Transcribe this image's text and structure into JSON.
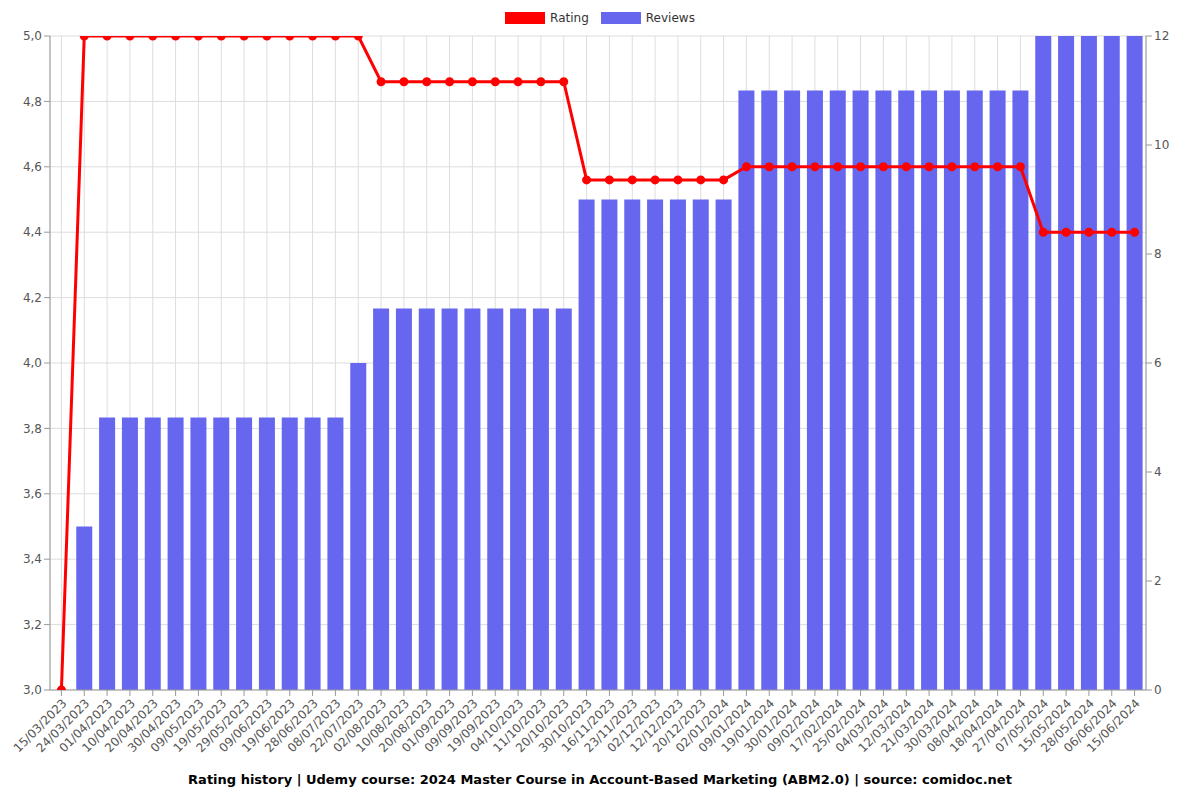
{
  "chart_data": {
    "type": "bar",
    "title": "Rating history | Udemy course: 2024 Master Course in Account-Based Marketing (ABM2.0) | source: comidoc.net",
    "categories": [
      "15/03/2023",
      "24/03/2023",
      "01/04/2023",
      "10/04/2023",
      "20/04/2023",
      "30/04/2023",
      "09/05/2023",
      "19/05/2023",
      "29/05/2023",
      "09/06/2023",
      "19/06/2023",
      "28/06/2023",
      "08/07/2023",
      "22/07/2023",
      "02/08/2023",
      "10/08/2023",
      "20/08/2023",
      "01/09/2023",
      "09/09/2023",
      "19/09/2023",
      "04/10/2023",
      "11/10/2023",
      "20/10/2023",
      "30/10/2023",
      "16/11/2023",
      "23/11/2023",
      "02/12/2023",
      "12/12/2023",
      "20/12/2023",
      "02/01/2024",
      "09/01/2024",
      "19/01/2024",
      "30/01/2024",
      "09/02/2024",
      "17/02/2024",
      "25/02/2024",
      "04/03/2024",
      "12/03/2024",
      "21/03/2024",
      "30/03/2024",
      "08/04/2024",
      "18/04/2024",
      "27/04/2024",
      "07/05/2024",
      "15/05/2024",
      "28/05/2024",
      "06/06/2024",
      "15/06/2024"
    ],
    "series": [
      {
        "name": "Rating",
        "type": "line",
        "color": "#ff0000",
        "marker": "circle",
        "values": [
          3.0,
          5.0,
          5.0,
          5.0,
          5.0,
          5.0,
          5.0,
          5.0,
          5.0,
          5.0,
          5.0,
          5.0,
          5.0,
          5.0,
          4.86,
          4.86,
          4.86,
          4.86,
          4.86,
          4.86,
          4.86,
          4.86,
          4.86,
          4.56,
          4.56,
          4.56,
          4.56,
          4.56,
          4.56,
          4.56,
          4.6,
          4.6,
          4.6,
          4.6,
          4.6,
          4.6,
          4.6,
          4.6,
          4.6,
          4.6,
          4.6,
          4.6,
          4.6,
          4.4,
          4.4,
          4.4,
          4.4,
          4.4
        ]
      },
      {
        "name": "Reviews",
        "type": "bar",
        "axis": "y2",
        "color": "#6666ee",
        "values": [
          0,
          3,
          5,
          5,
          5,
          5,
          5,
          5,
          5,
          5,
          5,
          5,
          5,
          6,
          7,
          7,
          7,
          7,
          7,
          7,
          7,
          7,
          7,
          9,
          9,
          9,
          9,
          9,
          9,
          9,
          11,
          11,
          11,
          11,
          11,
          11,
          11,
          11,
          11,
          11,
          11,
          11,
          11,
          12,
          12,
          12,
          12,
          12
        ]
      }
    ],
    "ylim": [
      3.0,
      5.0
    ],
    "yticks": [
      {
        "value": 3.0,
        "label": "3,0"
      },
      {
        "value": 3.2,
        "label": "3,2"
      },
      {
        "value": 3.4,
        "label": "3,4"
      },
      {
        "value": 3.6,
        "label": "3,6"
      },
      {
        "value": 3.8,
        "label": "3,8"
      },
      {
        "value": 4.0,
        "label": "4,0"
      },
      {
        "value": 4.2,
        "label": "4,2"
      },
      {
        "value": 4.4,
        "label": "4,4"
      },
      {
        "value": 4.6,
        "label": "4,6"
      },
      {
        "value": 4.8,
        "label": "4,8"
      },
      {
        "value": 5.0,
        "label": "5,0"
      }
    ],
    "y2lim": [
      0,
      12
    ],
    "y2ticks": [
      0,
      2,
      4,
      6,
      8,
      10,
      12
    ],
    "grid": true,
    "legend": "top"
  }
}
